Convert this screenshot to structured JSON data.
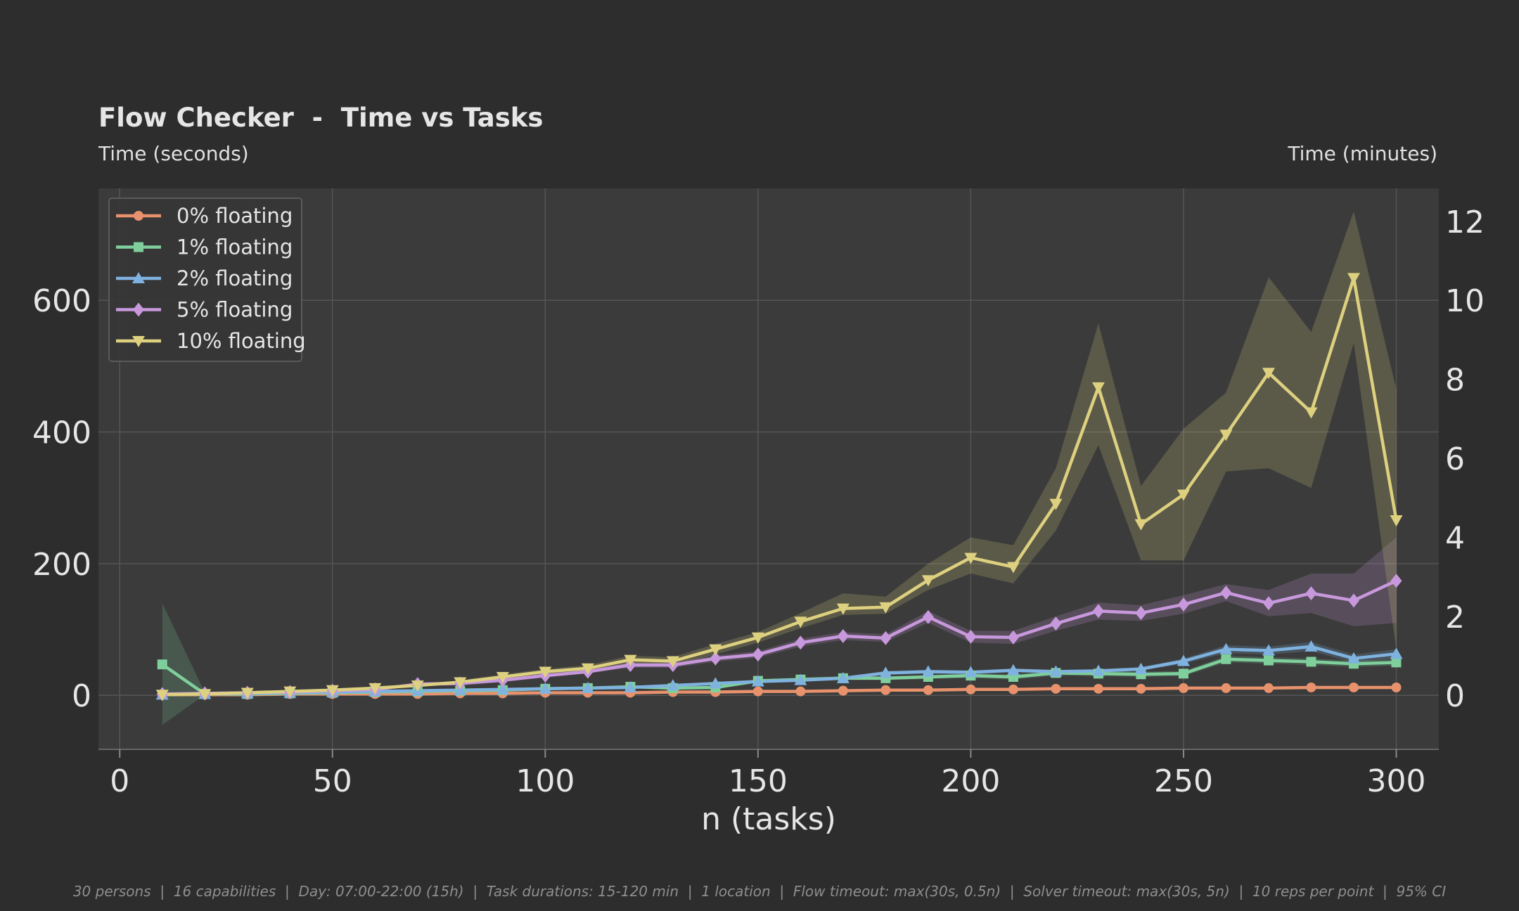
{
  "chart_data": {
    "type": "line",
    "title": "Flow Checker  -  Time vs Tasks",
    "ylabel": "Time (seconds)",
    "ylabel_right": "Time (minutes)",
    "xlabel": "n (tasks)",
    "footer": "30 persons  |  16 capabilities  |  Day: 07:00-22:00 (15h)  |  Task durations: 15-120 min  |  1 location  |  Flow timeout: max(30s, 0.5n)  |  Solver timeout: max(30s, 5n)  |  10 reps per point  |  95% CI",
    "xlim": [
      -5,
      310
    ],
    "ylim": [
      -82,
      770
    ],
    "ylim_right": [
      -1.367,
      12.833
    ],
    "x_ticks": [
      0,
      50,
      100,
      150,
      200,
      250,
      300
    ],
    "y_ticks": [
      0,
      200,
      400,
      600
    ],
    "y_right_ticks": [
      0,
      2,
      4,
      6,
      8,
      10,
      12
    ],
    "grid": true,
    "legend_position": "top-left",
    "x": [
      10,
      20,
      30,
      40,
      50,
      60,
      70,
      80,
      90,
      100,
      110,
      120,
      130,
      140,
      150,
      160,
      170,
      180,
      190,
      200,
      210,
      220,
      230,
      240,
      250,
      260,
      270,
      280,
      290,
      300
    ],
    "series": [
      {
        "name": "0% floating",
        "color": "#e8926d",
        "marker": "circle",
        "values": [
          1,
          1,
          1,
          2,
          2,
          2,
          2,
          3,
          3,
          4,
          4,
          4,
          5,
          5,
          6,
          6,
          7,
          8,
          8,
          9,
          9,
          10,
          10,
          10,
          11,
          11,
          11,
          12,
          12,
          12
        ],
        "ci_low": [
          0,
          0,
          0,
          1,
          1,
          1,
          1,
          2,
          2,
          3,
          3,
          3,
          4,
          4,
          5,
          5,
          6,
          7,
          7,
          8,
          8,
          9,
          9,
          9,
          10,
          10,
          10,
          11,
          11,
          11
        ],
        "ci_high": [
          2,
          2,
          2,
          3,
          3,
          3,
          3,
          4,
          4,
          5,
          5,
          5,
          6,
          6,
          7,
          7,
          8,
          9,
          9,
          10,
          10,
          11,
          11,
          11,
          12,
          12,
          12,
          13,
          13,
          13
        ]
      },
      {
        "name": "1% floating",
        "color": "#7fcf9c",
        "marker": "square",
        "values": [
          47,
          2,
          2,
          3,
          4,
          5,
          6,
          7,
          8,
          10,
          11,
          13,
          11,
          12,
          22,
          24,
          26,
          26,
          28,
          30,
          28,
          34,
          33,
          32,
          33,
          55,
          53,
          51,
          48,
          50
        ],
        "ci_low": [
          -45,
          1,
          1,
          2,
          3,
          4,
          5,
          6,
          6,
          8,
          9,
          11,
          9,
          10,
          19,
          21,
          23,
          23,
          25,
          26,
          24,
          30,
          29,
          28,
          29,
          50,
          48,
          46,
          43,
          45
        ],
        "ci_high": [
          140,
          4,
          4,
          5,
          6,
          7,
          8,
          9,
          10,
          12,
          13,
          15,
          13,
          14,
          25,
          27,
          29,
          29,
          31,
          34,
          32,
          38,
          37,
          36,
          37,
          60,
          58,
          56,
          53,
          55
        ]
      },
      {
        "name": "2% floating",
        "color": "#7fb2df",
        "marker": "triangle-up",
        "values": [
          1,
          2,
          3,
          4,
          5,
          6,
          7,
          8,
          9,
          10,
          11,
          12,
          15,
          18,
          21,
          23,
          26,
          34,
          36,
          35,
          38,
          36,
          37,
          40,
          52,
          70,
          68,
          74,
          56,
          63
        ],
        "ci_low": [
          0,
          1,
          2,
          3,
          4,
          5,
          6,
          7,
          8,
          9,
          10,
          11,
          13,
          16,
          19,
          21,
          24,
          31,
          33,
          32,
          35,
          33,
          34,
          37,
          48,
          64,
          62,
          67,
          50,
          56
        ],
        "ci_high": [
          2,
          3,
          4,
          5,
          6,
          7,
          8,
          9,
          10,
          11,
          12,
          13,
          17,
          20,
          23,
          25,
          28,
          37,
          39,
          38,
          41,
          39,
          40,
          43,
          56,
          76,
          74,
          81,
          62,
          70
        ]
      },
      {
        "name": "5% floating",
        "color": "#c898dc",
        "marker": "diamond",
        "values": [
          2,
          3,
          4,
          5,
          7,
          9,
          17,
          18,
          23,
          30,
          36,
          46,
          46,
          56,
          62,
          80,
          90,
          87,
          119,
          89,
          88,
          109,
          128,
          125,
          138,
          156,
          140,
          155,
          144,
          174
        ],
        "ci_low": [
          1,
          2,
          3,
          4,
          6,
          8,
          14,
          15,
          20,
          27,
          33,
          42,
          42,
          51,
          57,
          74,
          84,
          81,
          110,
          80,
          78,
          98,
          115,
          113,
          124,
          143,
          120,
          125,
          105,
          110
        ],
        "ci_high": [
          3,
          4,
          5,
          6,
          8,
          10,
          20,
          21,
          26,
          33,
          39,
          50,
          50,
          61,
          67,
          86,
          96,
          93,
          128,
          98,
          98,
          120,
          141,
          137,
          152,
          169,
          160,
          185,
          185,
          240
        ]
      },
      {
        "name": "10% floating",
        "color": "#ddd07f",
        "marker": "triangle-down",
        "values": [
          1,
          2,
          4,
          6,
          8,
          11,
          15,
          20,
          28,
          36,
          41,
          54,
          52,
          70,
          88,
          112,
          132,
          134,
          175,
          209,
          195,
          291,
          468,
          260,
          305,
          396,
          490,
          430,
          634,
          266
        ],
        "ci_low": [
          0,
          1,
          3,
          5,
          7,
          9,
          13,
          17,
          24,
          32,
          36,
          48,
          46,
          62,
          80,
          102,
          122,
          124,
          160,
          185,
          170,
          250,
          380,
          205,
          205,
          340,
          345,
          315,
          535,
          70
        ],
        "ci_high": [
          2,
          3,
          5,
          7,
          9,
          13,
          17,
          23,
          32,
          40,
          46,
          60,
          58,
          78,
          96,
          125,
          155,
          150,
          200,
          240,
          228,
          345,
          565,
          318,
          405,
          460,
          635,
          552,
          735,
          465
        ]
      }
    ]
  }
}
